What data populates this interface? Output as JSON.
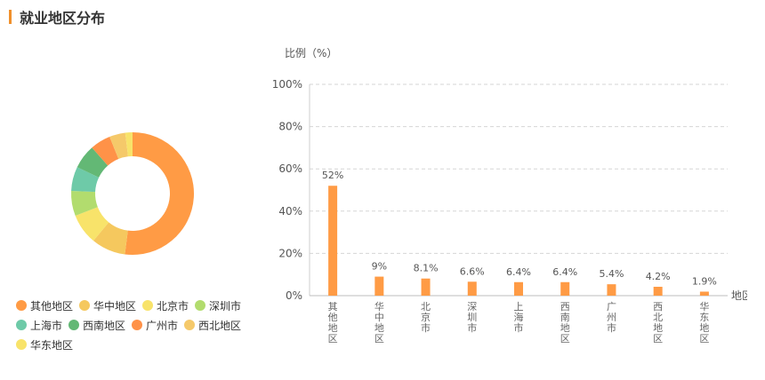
{
  "section_title": "就业地区分布",
  "chart_data": [
    {
      "type": "pie",
      "variant": "donut",
      "categories": [
        "其他地区",
        "华中地区",
        "北京市",
        "深圳市",
        "上海市",
        "西南地区",
        "广州市",
        "西北地区",
        "华东地区"
      ],
      "values": [
        52,
        9,
        8.1,
        6.6,
        6.4,
        6.4,
        5.4,
        4.2,
        1.9
      ],
      "colors": [
        "#ff9b45",
        "#f5c85e",
        "#f8e36a",
        "#b2dc6e",
        "#6ecaa8",
        "#63b875",
        "#ff9248",
        "#f5c96a",
        "#f8e36a"
      ],
      "legend_position": "bottom"
    },
    {
      "type": "bar",
      "ylabel": "比例（%）",
      "xlabel": "地区",
      "categories": [
        "其他地区",
        "华中地区",
        "北京市",
        "深圳市",
        "上海市",
        "西南地区",
        "广州市",
        "西北地区",
        "华东地区"
      ],
      "values": [
        52,
        9,
        8.1,
        6.6,
        6.4,
        6.4,
        5.4,
        4.2,
        1.9
      ],
      "data_labels": [
        "52%",
        "9%",
        "8.1%",
        "6.6%",
        "6.4%",
        "6.4%",
        "5.4%",
        "4.2%",
        "1.9%"
      ],
      "ylim": [
        0,
        100
      ],
      "yticks": [
        0,
        20,
        40,
        60,
        80,
        100
      ],
      "ytick_labels": [
        "0%",
        "20%",
        "40%",
        "60%",
        "80%",
        "100%"
      ],
      "bar_color": "#ff9b45",
      "grid": true
    }
  ]
}
